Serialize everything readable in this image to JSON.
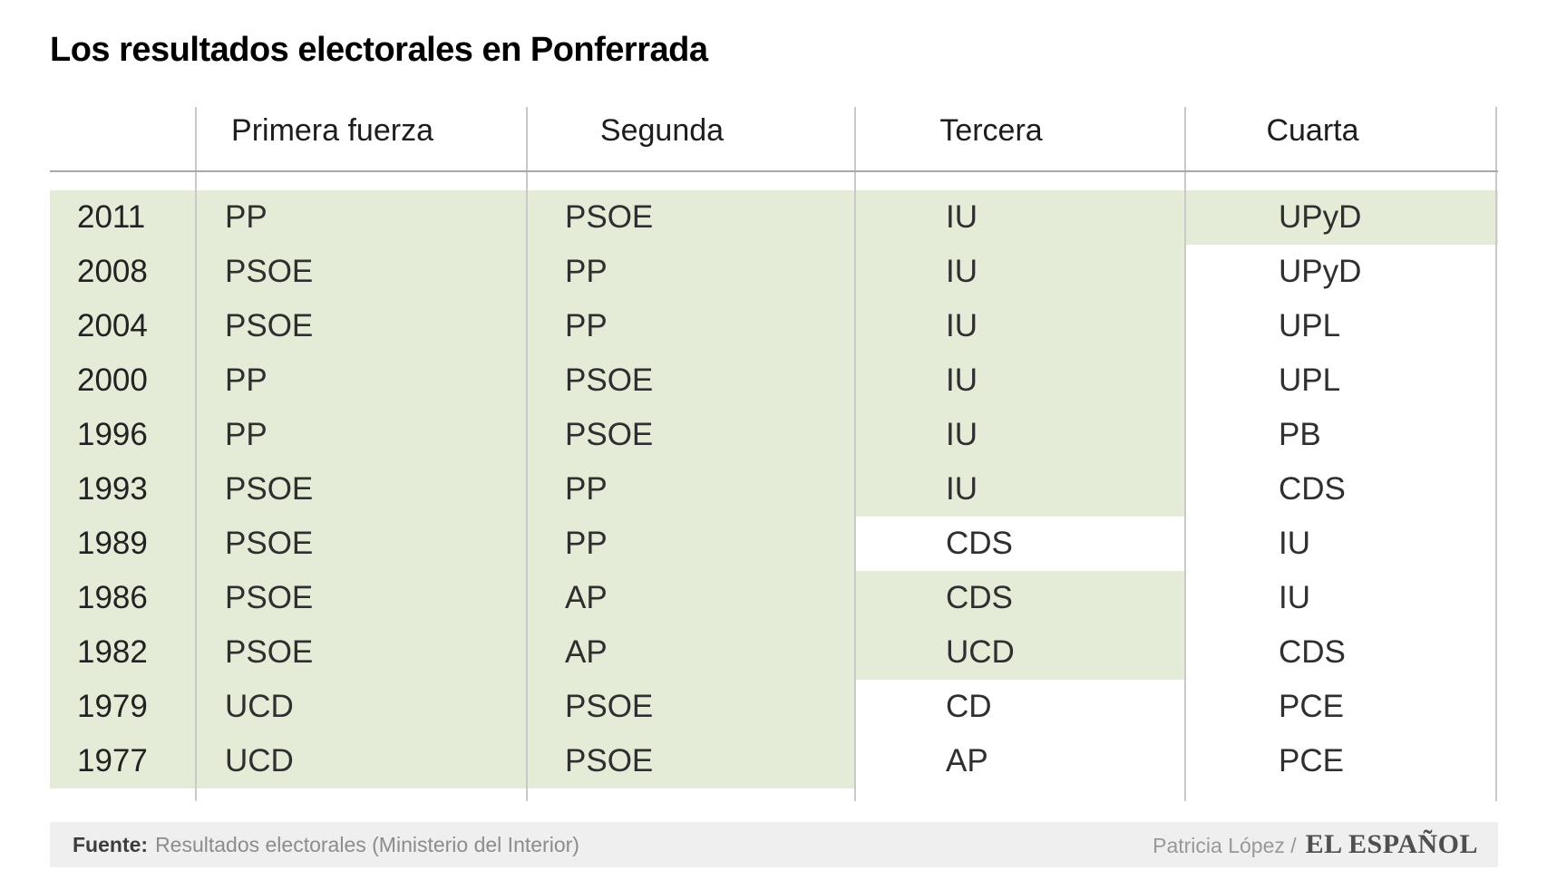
{
  "title": "Los resultados electorales en Ponferrada",
  "chart_data": {
    "type": "table",
    "title": "Los resultados electorales en Ponferrada",
    "columns": [
      "",
      "Primera fuerza",
      "Segunda",
      "Tercera",
      "Cuarta"
    ],
    "rows": [
      {
        "year": "2011",
        "cells": [
          "PP",
          "PSOE",
          "IU",
          "UPyD"
        ],
        "highlight": [
          true,
          true,
          true,
          true,
          true
        ]
      },
      {
        "year": "2008",
        "cells": [
          "PSOE",
          "PP",
          "IU",
          "UPyD"
        ],
        "highlight": [
          true,
          true,
          true,
          true,
          false
        ]
      },
      {
        "year": "2004",
        "cells": [
          "PSOE",
          "PP",
          "IU",
          "UPL"
        ],
        "highlight": [
          true,
          true,
          true,
          true,
          false
        ]
      },
      {
        "year": "2000",
        "cells": [
          "PP",
          "PSOE",
          "IU",
          "UPL"
        ],
        "highlight": [
          true,
          true,
          true,
          true,
          false
        ]
      },
      {
        "year": "1996",
        "cells": [
          "PP",
          "PSOE",
          "IU",
          "PB"
        ],
        "highlight": [
          true,
          true,
          true,
          true,
          false
        ]
      },
      {
        "year": "1993",
        "cells": [
          "PSOE",
          "PP",
          "IU",
          "CDS"
        ],
        "highlight": [
          true,
          true,
          true,
          true,
          false
        ]
      },
      {
        "year": "1989",
        "cells": [
          "PSOE",
          "PP",
          "CDS",
          "IU"
        ],
        "highlight": [
          true,
          true,
          true,
          false,
          false
        ]
      },
      {
        "year": "1986",
        "cells": [
          "PSOE",
          "AP",
          "CDS",
          "IU"
        ],
        "highlight": [
          true,
          true,
          true,
          true,
          false
        ]
      },
      {
        "year": "1982",
        "cells": [
          "PSOE",
          "AP",
          "UCD",
          "CDS"
        ],
        "highlight": [
          true,
          true,
          true,
          true,
          false
        ]
      },
      {
        "year": "1979",
        "cells": [
          "UCD",
          "PSOE",
          "CD",
          "PCE"
        ],
        "highlight": [
          true,
          true,
          true,
          false,
          false
        ]
      },
      {
        "year": "1977",
        "cells": [
          "UCD",
          "PSOE",
          "AP",
          "PCE"
        ],
        "highlight": [
          true,
          true,
          true,
          false,
          false
        ]
      }
    ],
    "legend_position": "none",
    "grid": "column-dividers"
  },
  "footer": {
    "source_label": "Fuente:",
    "source_text": "Resultados electorales (Ministerio del Interior)",
    "credit": "Patricia López /",
    "brand": "EL ESPAÑOL"
  },
  "colors": {
    "highlight_green": "#e4ecd7",
    "footer_bg": "#efefef",
    "divider": "#c9c9c9",
    "header_line": "#a9a9a9"
  }
}
